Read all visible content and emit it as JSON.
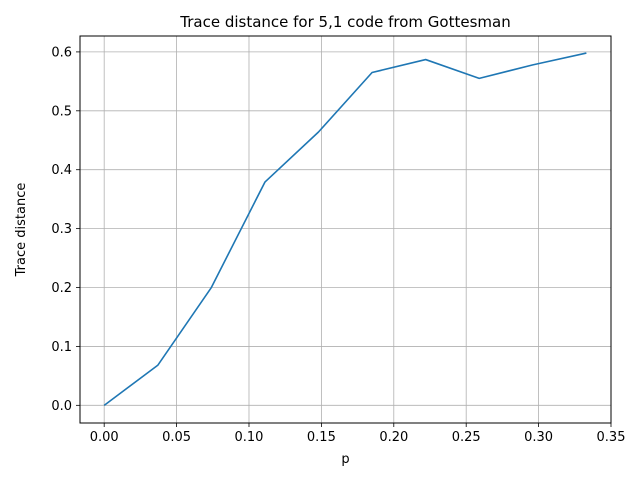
{
  "chart_data": {
    "type": "line",
    "title": "Trace distance for 5,1 code from Gottesman",
    "xlabel": "p",
    "ylabel": "Trace distance",
    "xlim": [
      -0.0167,
      0.35
    ],
    "ylim": [
      -0.03,
      0.627
    ],
    "xticks": [
      0.0,
      0.05,
      0.1,
      0.15,
      0.2,
      0.25,
      0.3,
      0.35
    ],
    "xtick_labels": [
      "0.00",
      "0.05",
      "0.10",
      "0.15",
      "0.20",
      "0.25",
      "0.30",
      "0.35"
    ],
    "yticks": [
      0.0,
      0.1,
      0.2,
      0.3,
      0.4,
      0.5,
      0.6
    ],
    "ytick_labels": [
      "0.0",
      "0.1",
      "0.2",
      "0.3",
      "0.4",
      "0.5",
      "0.6"
    ],
    "grid": true,
    "series": [
      {
        "color": "#1f77b4",
        "x": [
          0.0,
          0.037,
          0.074,
          0.111,
          0.148,
          0.185,
          0.222,
          0.259,
          0.296,
          0.333
        ],
        "y": [
          0.0,
          0.068,
          0.2,
          0.379,
          0.464,
          0.565,
          0.587,
          0.555,
          0.578,
          0.598
        ]
      }
    ]
  }
}
